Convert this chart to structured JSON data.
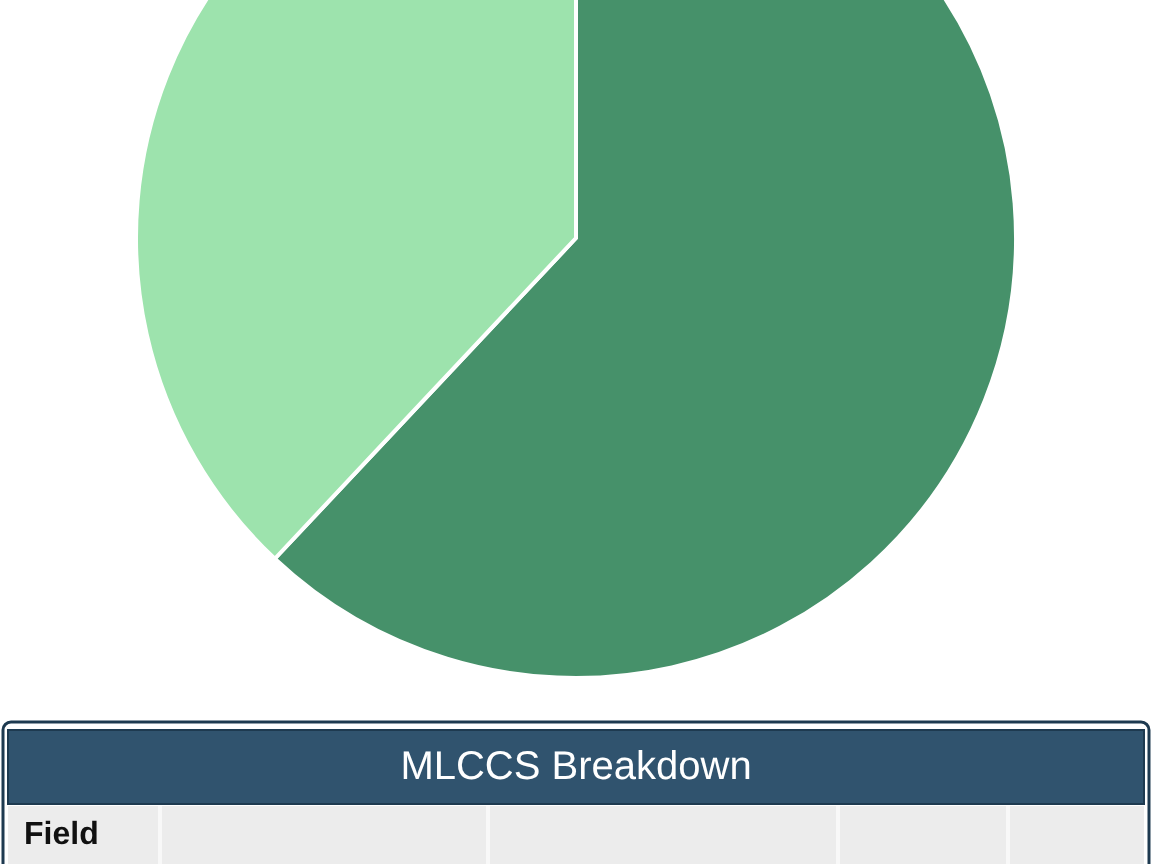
{
  "chart_data": {
    "type": "pie",
    "title": "MLCCS Breakdown",
    "categories": [
      null,
      null
    ],
    "values": [
      62,
      38
    ],
    "colors": [
      "#46916a",
      "#9de3ad"
    ],
    "annotations": [
      "Field"
    ]
  }
}
